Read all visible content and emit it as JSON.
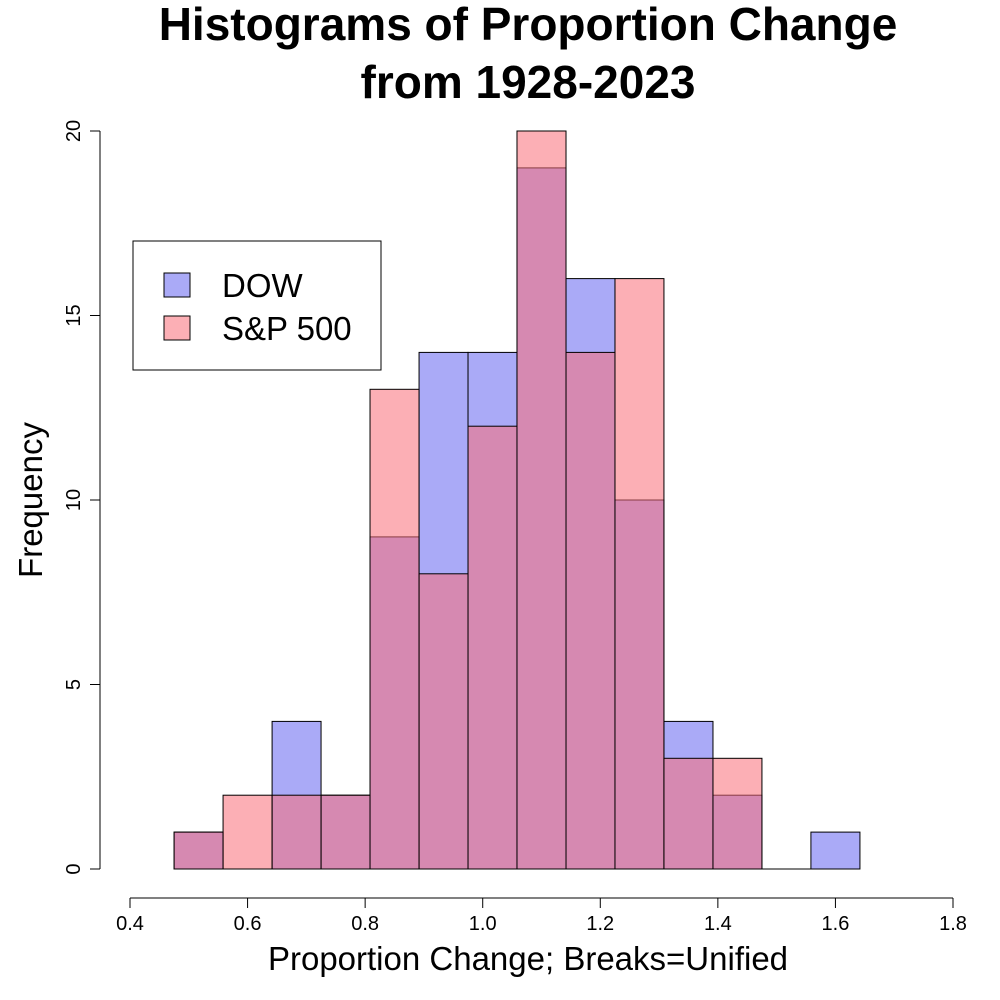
{
  "chart_data": {
    "type": "histogram",
    "title_line1": "Histograms of Proportion Change",
    "title_line2": "from 1928-2023",
    "xlabel": "Proportion Change; Breaks=Unified",
    "ylabel": "Frequency",
    "xlim": [
      0.4,
      1.8
    ],
    "ylim": [
      0,
      20
    ],
    "x_ticks": [
      0.4,
      0.6,
      0.8,
      1.0,
      1.2,
      1.4,
      1.6,
      1.8
    ],
    "x_tick_labels": [
      "0.4",
      "0.6",
      "0.8",
      "1.0",
      "1.2",
      "1.4",
      "1.6",
      "1.8"
    ],
    "y_ticks": [
      0,
      5,
      10,
      15,
      20
    ],
    "y_tick_labels": [
      "0",
      "5",
      "10",
      "15",
      "20"
    ],
    "bin_edges": [
      0.475,
      0.5583,
      0.6417,
      0.725,
      0.8083,
      0.8917,
      0.975,
      1.0583,
      1.1417,
      1.225,
      1.3083,
      1.3917,
      1.475,
      1.5583,
      1.6417
    ],
    "series": [
      {
        "name": "DOW",
        "color": "#6464f0",
        "opacity": 0.55,
        "values": [
          1,
          0,
          4,
          2,
          9,
          14,
          14,
          19,
          16,
          10,
          4,
          2,
          0,
          1
        ]
      },
      {
        "name": "S&P 500",
        "color": "#fa6e78",
        "opacity": 0.55,
        "values": [
          1,
          2,
          2,
          2,
          13,
          8,
          12,
          20,
          14,
          16,
          3,
          3,
          0,
          0
        ]
      }
    ],
    "legend": {
      "position": "top-left"
    },
    "grid": false
  }
}
